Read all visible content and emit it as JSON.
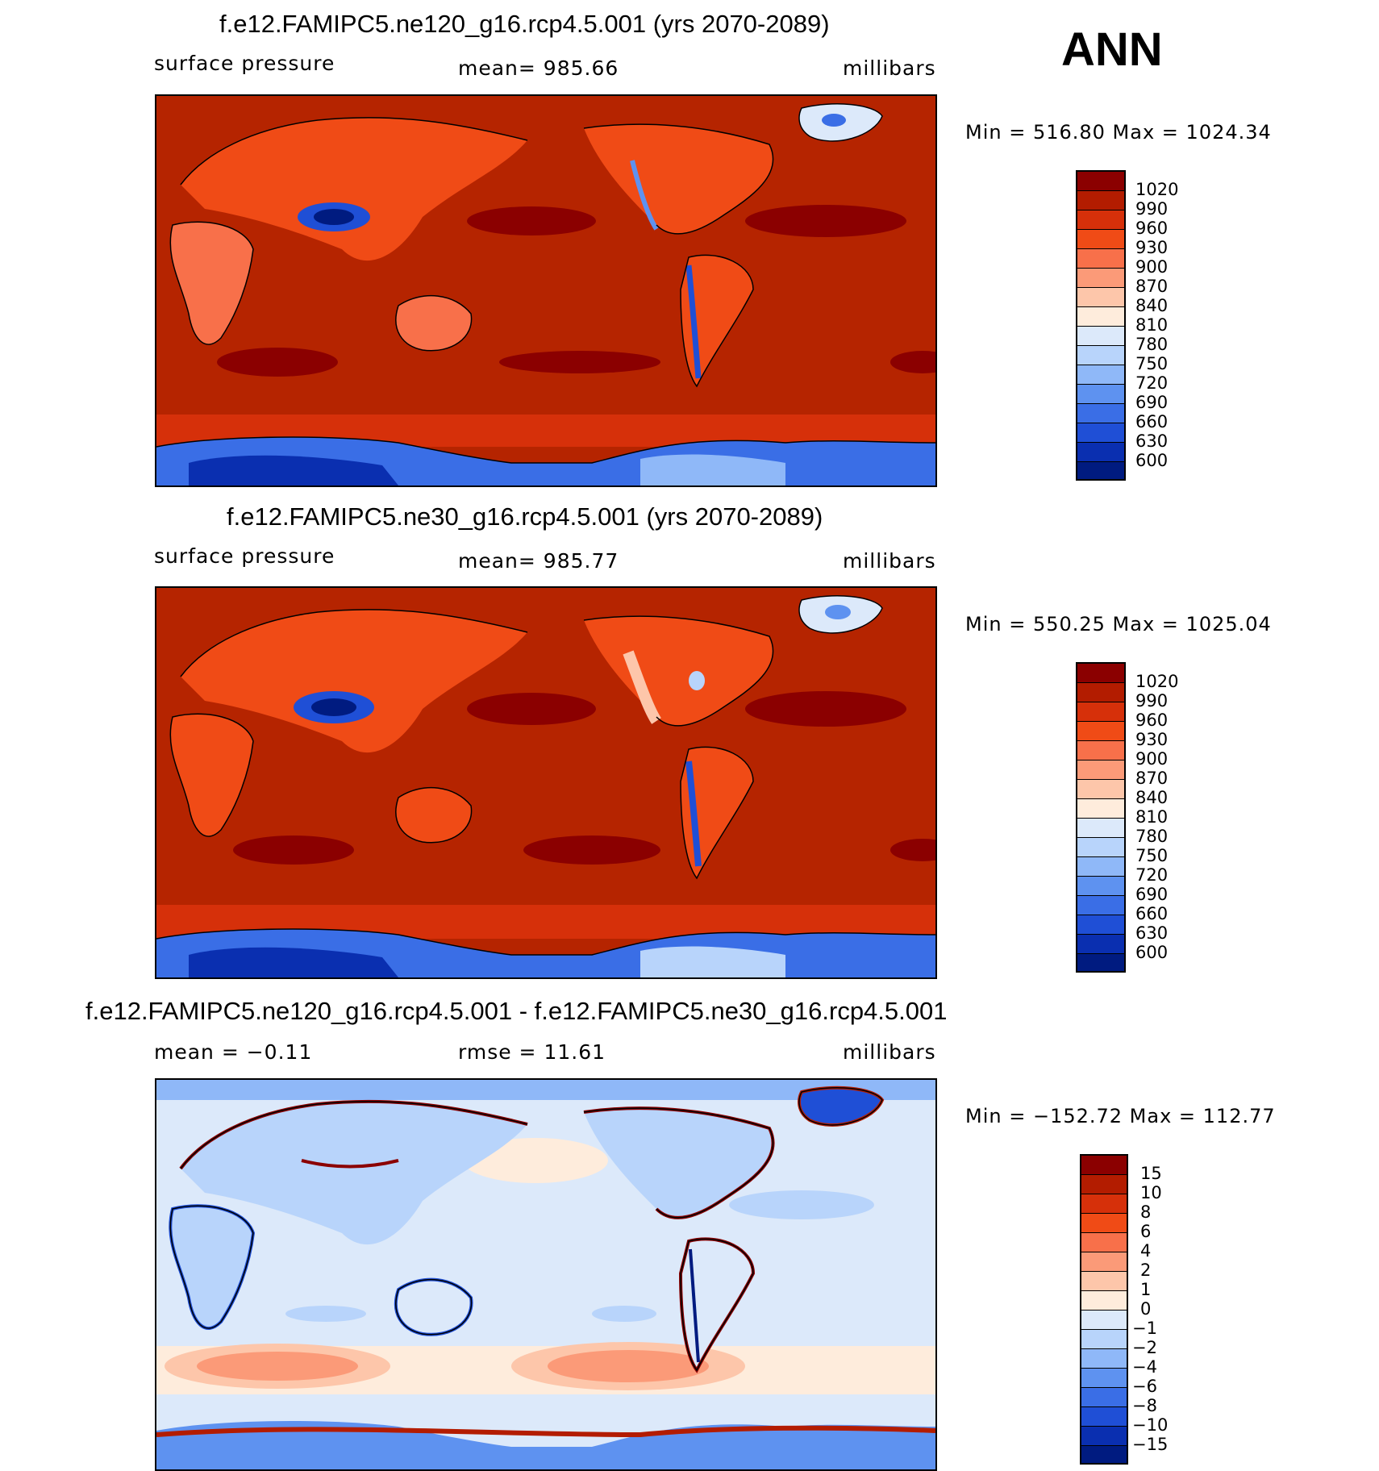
{
  "season": "ANN",
  "panels": [
    {
      "title": "f.e12.FAMIPC5.ne120_g16.rcp4.5.001 (yrs 2070-2089)",
      "left_label": "surface pressure",
      "center_label": "mean=  985.66",
      "units": "millibars",
      "minmax": "Min  =  516.80  Max  =  1024.34",
      "colorbar_labels": [
        "1020",
        "990",
        "960",
        "930",
        "900",
        "870",
        "840",
        "810",
        "780",
        "750",
        "720",
        "690",
        "660",
        "630",
        "600"
      ]
    },
    {
      "title": "f.e12.FAMIPC5.ne30_g16.rcp4.5.001 (yrs 2070-2089)",
      "left_label": "surface pressure",
      "center_label": "mean=  985.77",
      "units": "millibars",
      "minmax": "Min  =  550.25  Max  =  1025.04",
      "colorbar_labels": [
        "1020",
        "990",
        "960",
        "930",
        "900",
        "870",
        "840",
        "810",
        "780",
        "750",
        "720",
        "690",
        "660",
        "630",
        "600"
      ]
    },
    {
      "title": "f.e12.FAMIPC5.ne120_g16.rcp4.5.001 - f.e12.FAMIPC5.ne30_g16.rcp4.5.001",
      "left_label": "mean =   −0.11",
      "center_label": "rmse =   11.61",
      "units": "millibars",
      "minmax": "Min  =  −152.72  Max  =  112.77",
      "colorbar_labels": [
        "15",
        "10",
        "8",
        "6",
        "4",
        "2",
        "1",
        "0",
        "−1",
        "−2",
        "−4",
        "−6",
        "−8",
        "−10",
        "−15"
      ]
    }
  ],
  "colors": {
    "abs_scale": [
      "#8b0000",
      "#b31c00",
      "#d6300a",
      "#f04b16",
      "#f8704a",
      "#fb9a78",
      "#fdc6aa",
      "#feecdc",
      "#dce9fa",
      "#b8d4fb",
      "#8fb8f8",
      "#5e92f0",
      "#3a6ee6",
      "#1f4fd6",
      "#0a2fb0",
      "#001b80"
    ],
    "diff_scale": [
      "#8b0000",
      "#b31c00",
      "#d6300a",
      "#f04b16",
      "#f8704a",
      "#fb9a78",
      "#fdc6aa",
      "#feecdc",
      "#dce9fa",
      "#b8d4fb",
      "#8fb8f8",
      "#5e92f0",
      "#3a6ee6",
      "#1f4fd6",
      "#0a2fb0",
      "#001b80"
    ]
  }
}
